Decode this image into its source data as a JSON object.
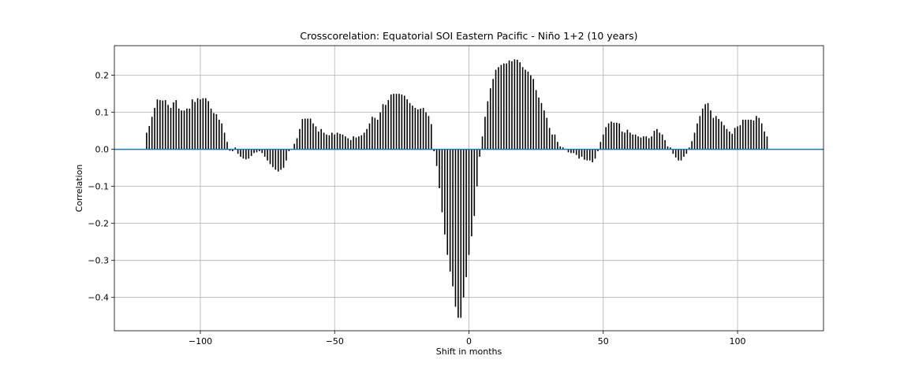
{
  "chart_data": {
    "type": "bar",
    "title": "Crosscorelation: Equatorial SOI Eastern Pacific - Niño 1+2 (10 years)",
    "xlabel": "Shift in months",
    "ylabel": "Correlation",
    "xlim": [
      -132,
      132
    ],
    "ylim": [
      -0.49,
      0.28
    ],
    "xticks": [
      -100,
      -50,
      0,
      50,
      100
    ],
    "xtick_labels": [
      "−100",
      "−50",
      "0",
      "50",
      "100"
    ],
    "yticks": [
      -0.4,
      -0.3,
      -0.2,
      -0.1,
      0.0,
      0.1,
      0.2
    ],
    "ytick_labels": [
      "−0.4",
      "−0.3",
      "−0.2",
      "−0.1",
      "0.0",
      "0.1",
      "0.2"
    ],
    "grid": true,
    "bar_color": "#000000",
    "zero_line_color": "#1f77b4",
    "x_start": -120,
    "x_step": 1,
    "values": [
      0.045,
      0.063,
      0.088,
      0.112,
      0.135,
      0.133,
      0.132,
      0.133,
      0.12,
      0.112,
      0.127,
      0.133,
      0.11,
      0.105,
      0.105,
      0.11,
      0.11,
      0.135,
      0.128,
      0.138,
      0.135,
      0.138,
      0.138,
      0.13,
      0.11,
      0.098,
      0.095,
      0.08,
      0.07,
      0.045,
      0.02,
      -0.004,
      -0.005,
      0.005,
      -0.012,
      -0.02,
      -0.025,
      -0.027,
      -0.025,
      -0.018,
      -0.01,
      -0.008,
      -0.005,
      -0.01,
      -0.02,
      -0.03,
      -0.04,
      -0.048,
      -0.055,
      -0.06,
      -0.055,
      -0.05,
      -0.03,
      -0.005,
      0.0,
      0.015,
      0.03,
      0.055,
      0.082,
      0.083,
      0.083,
      0.083,
      0.07,
      0.062,
      0.048,
      0.055,
      0.045,
      0.04,
      0.038,
      0.045,
      0.04,
      0.045,
      0.042,
      0.04,
      0.035,
      0.03,
      0.025,
      0.035,
      0.032,
      0.035,
      0.038,
      0.045,
      0.055,
      0.07,
      0.088,
      0.085,
      0.08,
      0.1,
      0.122,
      0.12,
      0.133,
      0.148,
      0.15,
      0.15,
      0.15,
      0.148,
      0.145,
      0.135,
      0.125,
      0.118,
      0.112,
      0.108,
      0.11,
      0.112,
      0.1,
      0.09,
      0.068,
      -0.005,
      -0.045,
      -0.105,
      -0.17,
      -0.23,
      -0.285,
      -0.33,
      -0.37,
      -0.425,
      -0.455,
      -0.455,
      -0.4,
      -0.345,
      -0.285,
      -0.235,
      -0.18,
      -0.1,
      -0.02,
      0.035,
      0.088,
      0.13,
      0.165,
      0.19,
      0.215,
      0.222,
      0.228,
      0.232,
      0.232,
      0.24,
      0.238,
      0.243,
      0.242,
      0.235,
      0.222,
      0.215,
      0.21,
      0.2,
      0.19,
      0.16,
      0.14,
      0.125,
      0.105,
      0.085,
      0.058,
      0.04,
      0.04,
      0.02,
      0.008,
      0.005,
      0.0,
      -0.008,
      -0.01,
      -0.01,
      -0.015,
      -0.025,
      -0.02,
      -0.028,
      -0.03,
      -0.03,
      -0.035,
      -0.025,
      -0.005,
      0.02,
      0.04,
      0.06,
      0.07,
      0.075,
      0.072,
      0.072,
      0.07,
      0.048,
      0.045,
      0.053,
      0.045,
      0.04,
      0.04,
      0.035,
      0.032,
      0.035,
      0.035,
      0.03,
      0.035,
      0.05,
      0.055,
      0.045,
      0.04,
      0.025,
      0.008,
      0.005,
      -0.012,
      -0.022,
      -0.03,
      -0.03,
      -0.02,
      -0.012,
      0.005,
      0.022,
      0.045,
      0.07,
      0.09,
      0.11,
      0.122,
      0.125,
      0.105,
      0.085,
      0.09,
      0.082,
      0.075,
      0.065,
      0.055,
      0.048,
      0.042,
      0.058,
      0.062,
      0.065,
      0.08,
      0.08,
      0.08,
      0.08,
      0.078,
      0.09,
      0.085,
      0.07,
      0.048,
      0.035
    ]
  }
}
